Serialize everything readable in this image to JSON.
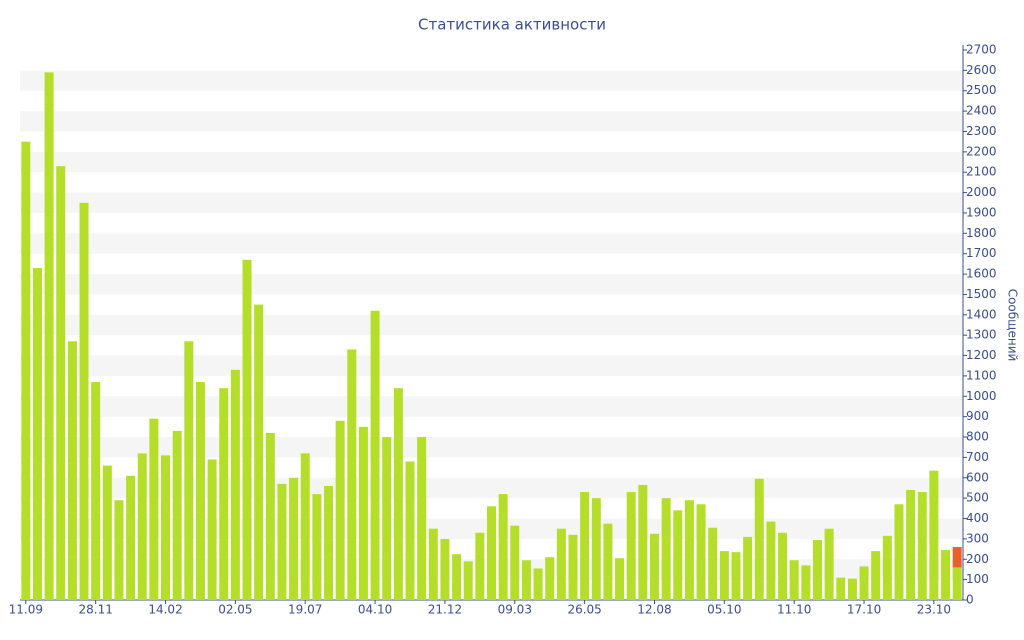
{
  "chart_data": {
    "type": "bar",
    "title": "Статистика активности",
    "y_label": "Сообщений",
    "categories": [
      "11.09",
      null,
      null,
      null,
      null,
      null,
      "28.11",
      null,
      null,
      null,
      null,
      null,
      "14.02",
      null,
      null,
      null,
      null,
      null,
      "02.05",
      null,
      null,
      null,
      null,
      null,
      "19.07",
      null,
      null,
      null,
      null,
      null,
      "04.10",
      null,
      null,
      null,
      null,
      null,
      "21.12",
      null,
      null,
      null,
      null,
      null,
      "09.03",
      null,
      null,
      null,
      null,
      null,
      "26.05",
      null,
      null,
      null,
      null,
      null,
      "12.08",
      null,
      null,
      null,
      null,
      null,
      "05.10",
      null,
      null,
      null,
      null,
      null,
      "11.10",
      null,
      null,
      null,
      null,
      null,
      "17.10",
      null,
      null,
      null,
      null,
      null,
      "23.10",
      null,
      null
    ],
    "series": [
      {
        "color": "#b5de2b",
        "values": [
          2250,
          1630,
          2590,
          2130,
          1270,
          1950,
          1070,
          660,
          490,
          610,
          720,
          890,
          710,
          830,
          1270,
          1070,
          690,
          1040,
          1130,
          1670,
          1450,
          820,
          570,
          600,
          720,
          520,
          560,
          880,
          1230,
          850,
          1420,
          800,
          1040,
          680,
          800,
          350,
          300,
          225,
          190,
          330,
          460,
          520,
          365,
          195,
          155,
          210,
          350,
          320,
          530,
          500,
          375,
          205,
          530,
          565,
          325,
          500,
          440,
          490,
          470,
          355,
          240,
          235,
          310,
          595,
          385,
          330,
          195,
          170,
          295,
          350,
          110,
          105,
          165,
          240,
          315,
          470,
          540,
          530,
          635,
          245,
          160
        ]
      },
      {
        "color": "#e8602c",
        "values": [
          null,
          null,
          null,
          null,
          null,
          null,
          null,
          null,
          null,
          null,
          null,
          null,
          null,
          null,
          null,
          null,
          null,
          null,
          null,
          null,
          null,
          null,
          null,
          null,
          null,
          null,
          null,
          null,
          null,
          null,
          null,
          null,
          null,
          null,
          null,
          null,
          null,
          null,
          null,
          null,
          null,
          null,
          null,
          null,
          null,
          null,
          null,
          null,
          null,
          null,
          null,
          null,
          null,
          null,
          null,
          null,
          null,
          null,
          null,
          null,
          null,
          null,
          null,
          null,
          null,
          null,
          null,
          null,
          null,
          null,
          null,
          null,
          null,
          null,
          null,
          null,
          null,
          null,
          null,
          null,
          100
        ]
      }
    ],
    "ylim": [
      0,
      2700
    ],
    "yticks": [
      0,
      100,
      200,
      300,
      400,
      500,
      600,
      700,
      800,
      900,
      1000,
      1100,
      1200,
      1300,
      1400,
      1500,
      1600,
      1700,
      1800,
      1900,
      2000,
      2100,
      2200,
      2300,
      2400,
      2500,
      2600,
      2700
    ],
    "grid": true
  }
}
